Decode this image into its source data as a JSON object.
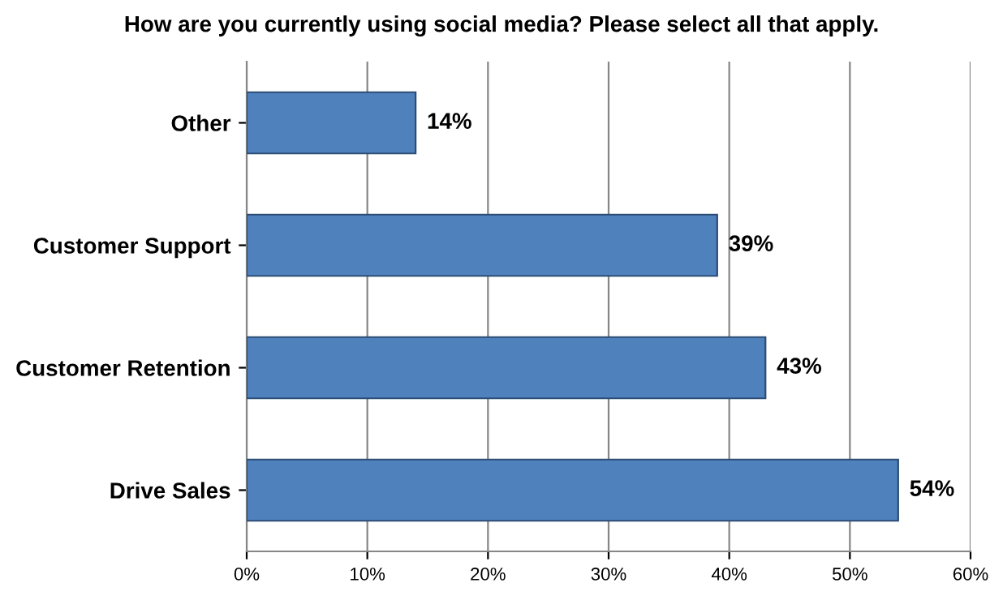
{
  "chart_data": {
    "type": "bar",
    "orientation": "horizontal",
    "title": "How are you currently using social media? Please select all that apply.",
    "categories": [
      "Other",
      "Customer Support",
      "Customer Retention",
      "Drive Sales"
    ],
    "values": [
      14,
      39,
      43,
      54
    ],
    "value_labels": [
      "14%",
      "39%",
      "43%",
      "54%"
    ],
    "color": "#4f81bd",
    "xlim": [
      0,
      60
    ],
    "xticks": [
      {
        "value": 0,
        "label": "0%"
      },
      {
        "value": 10,
        "label": "10%"
      },
      {
        "value": 20,
        "label": "20%"
      },
      {
        "value": 30,
        "label": "30%"
      },
      {
        "value": 40,
        "label": "40%"
      },
      {
        "value": 50,
        "label": "50%"
      },
      {
        "value": 60,
        "label": "60%"
      }
    ],
    "grid": "x",
    "legend": false
  }
}
